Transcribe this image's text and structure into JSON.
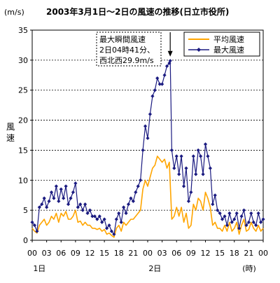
{
  "chart_data": {
    "type": "line",
    "title": "2003年3月1日～2日の風速の推移(日立市役所)",
    "unit_label": "(m/s)",
    "ylabel": "風速",
    "xlabel_unit": "(時)",
    "ylim": [
      0,
      35
    ],
    "yticks": [
      0,
      5,
      10,
      15,
      20,
      25,
      30,
      35
    ],
    "grid": "horizontal dashed",
    "legend_position": "top-right",
    "x_hours_range": [
      0,
      48
    ],
    "xticks": [
      "00",
      "03",
      "06",
      "09",
      "12",
      "15",
      "18",
      "21",
      "00",
      "03",
      "06",
      "09",
      "12",
      "15",
      "18",
      "21",
      "00"
    ],
    "day_labels": [
      {
        "label": "1日",
        "hour": 1.5
      },
      {
        "label": "2日",
        "hour": 25.5
      }
    ],
    "annotation": {
      "lines": [
        "最大瞬間風速",
        "2日04時41分、",
        "西北西29.9m/s"
      ],
      "x": 28.68,
      "y": 29.9
    },
    "series": [
      {
        "name": "平均風速",
        "color": "#FFA500",
        "x": [
          0,
          0.5,
          1,
          1.5,
          2,
          2.5,
          3,
          3.5,
          4,
          4.5,
          5,
          5.5,
          6,
          6.5,
          7,
          7.5,
          8,
          8.5,
          9,
          9.5,
          10,
          10.5,
          11,
          11.5,
          12,
          12.5,
          13,
          13.5,
          14,
          14.5,
          15,
          15.5,
          16,
          16.5,
          17,
          17.5,
          18,
          18.5,
          19,
          19.5,
          20,
          20.5,
          21,
          21.5,
          22,
          22.5,
          23,
          23.5,
          24,
          24.5,
          25,
          25.5,
          26,
          26.5,
          27,
          27.5,
          28,
          28.5,
          29,
          29.5,
          30,
          30.5,
          31,
          31.5,
          32,
          32.5,
          33,
          33.5,
          34,
          34.5,
          35,
          35.5,
          36,
          36.5,
          37,
          37.5,
          38,
          38.5,
          39,
          39.5,
          40,
          40.5,
          41,
          41.5,
          42,
          42.5,
          43,
          43.5,
          44,
          44.5,
          45,
          45.5,
          46,
          46.5,
          47,
          47.5,
          48
        ],
        "values": [
          2.0,
          1.5,
          1.2,
          2.5,
          3.0,
          3.5,
          2.5,
          3.0,
          4.0,
          3.5,
          4.5,
          3.0,
          4.5,
          4.0,
          4.8,
          3.5,
          3.5,
          4.0,
          5.0,
          3.0,
          3.2,
          2.5,
          3.0,
          2.5,
          2.5,
          2.0,
          2.0,
          1.8,
          2.0,
          1.5,
          1.8,
          1.0,
          1.2,
          0.8,
          0.5,
          2.0,
          2.5,
          1.5,
          3.0,
          2.5,
          3.0,
          3.5,
          3.5,
          4.0,
          4.5,
          5.0,
          8.5,
          10.0,
          9.0,
          10.5,
          12.0,
          12.5,
          14.0,
          13.5,
          13.0,
          13.5,
          12.0,
          13.0,
          3.5,
          4.0,
          5.5,
          4.0,
          5.5,
          3.0,
          4.5,
          2.0,
          2.5,
          6.0,
          5.0,
          7.0,
          6.5,
          5.0,
          8.0,
          7.0,
          5.5,
          2.5,
          3.0,
          2.0,
          2.0,
          1.5,
          2.5,
          1.5,
          3.0,
          1.5,
          2.0,
          3.0,
          1.0,
          2.5,
          3.5,
          1.5,
          1.8,
          3.0,
          2.0,
          1.5,
          2.5,
          1.5,
          2.0
        ]
      },
      {
        "name": "最大風速",
        "color": "#1A1A80",
        "x": [
          0,
          0.5,
          1,
          1.5,
          2,
          2.5,
          3,
          3.5,
          4,
          4.5,
          5,
          5.5,
          6,
          6.5,
          7,
          7.5,
          8,
          8.5,
          9,
          9.5,
          10,
          10.5,
          11,
          11.5,
          12,
          12.5,
          13,
          13.5,
          14,
          14.5,
          15,
          15.5,
          16,
          16.5,
          17,
          17.5,
          18,
          18.5,
          19,
          19.5,
          20,
          20.5,
          21,
          21.5,
          22,
          22.5,
          23,
          23.5,
          24,
          24.5,
          25,
          25.5,
          26,
          26.5,
          27,
          27.5,
          28,
          28.5,
          28.68,
          29,
          29.5,
          30,
          30.5,
          31,
          31.5,
          32,
          32.5,
          33,
          33.5,
          34,
          34.5,
          35,
          35.5,
          36,
          36.5,
          37,
          37.5,
          38,
          38.5,
          39,
          39.5,
          40,
          40.5,
          41,
          41.5,
          42,
          42.5,
          43,
          43.5,
          44,
          44.5,
          45,
          45.5,
          46,
          46.5,
          47,
          47.5,
          48
        ],
        "values": [
          3.0,
          2.5,
          1.5,
          5.5,
          6.0,
          7.0,
          5.5,
          6.5,
          8.0,
          7.0,
          9.0,
          6.5,
          8.5,
          7.0,
          9.0,
          6.0,
          7.0,
          8.0,
          9.5,
          5.5,
          6.0,
          5.0,
          6.0,
          4.5,
          5.0,
          4.0,
          4.0,
          3.5,
          4.0,
          3.0,
          3.5,
          2.0,
          2.5,
          1.5,
          1.0,
          3.5,
          4.5,
          3.0,
          5.5,
          4.5,
          6.0,
          7.0,
          6.5,
          8.0,
          9.0,
          10.0,
          15.0,
          19.0,
          17.0,
          21.0,
          24.0,
          25.0,
          27.0,
          26.0,
          26.0,
          27.5,
          29.0,
          29.5,
          29.9,
          15.0,
          12.0,
          14.0,
          11.0,
          14.0,
          9.0,
          12.0,
          6.5,
          8.0,
          14.0,
          11.0,
          15.0,
          14.0,
          11.0,
          16.0,
          14.0,
          12.0,
          6.0,
          7.5,
          5.0,
          4.5,
          3.5,
          4.0,
          2.5,
          4.5,
          3.0,
          3.5,
          4.5,
          2.0,
          4.0,
          5.0,
          2.5,
          3.0,
          4.5,
          3.0,
          2.5,
          4.5,
          3.0,
          3.5
        ]
      }
    ]
  }
}
